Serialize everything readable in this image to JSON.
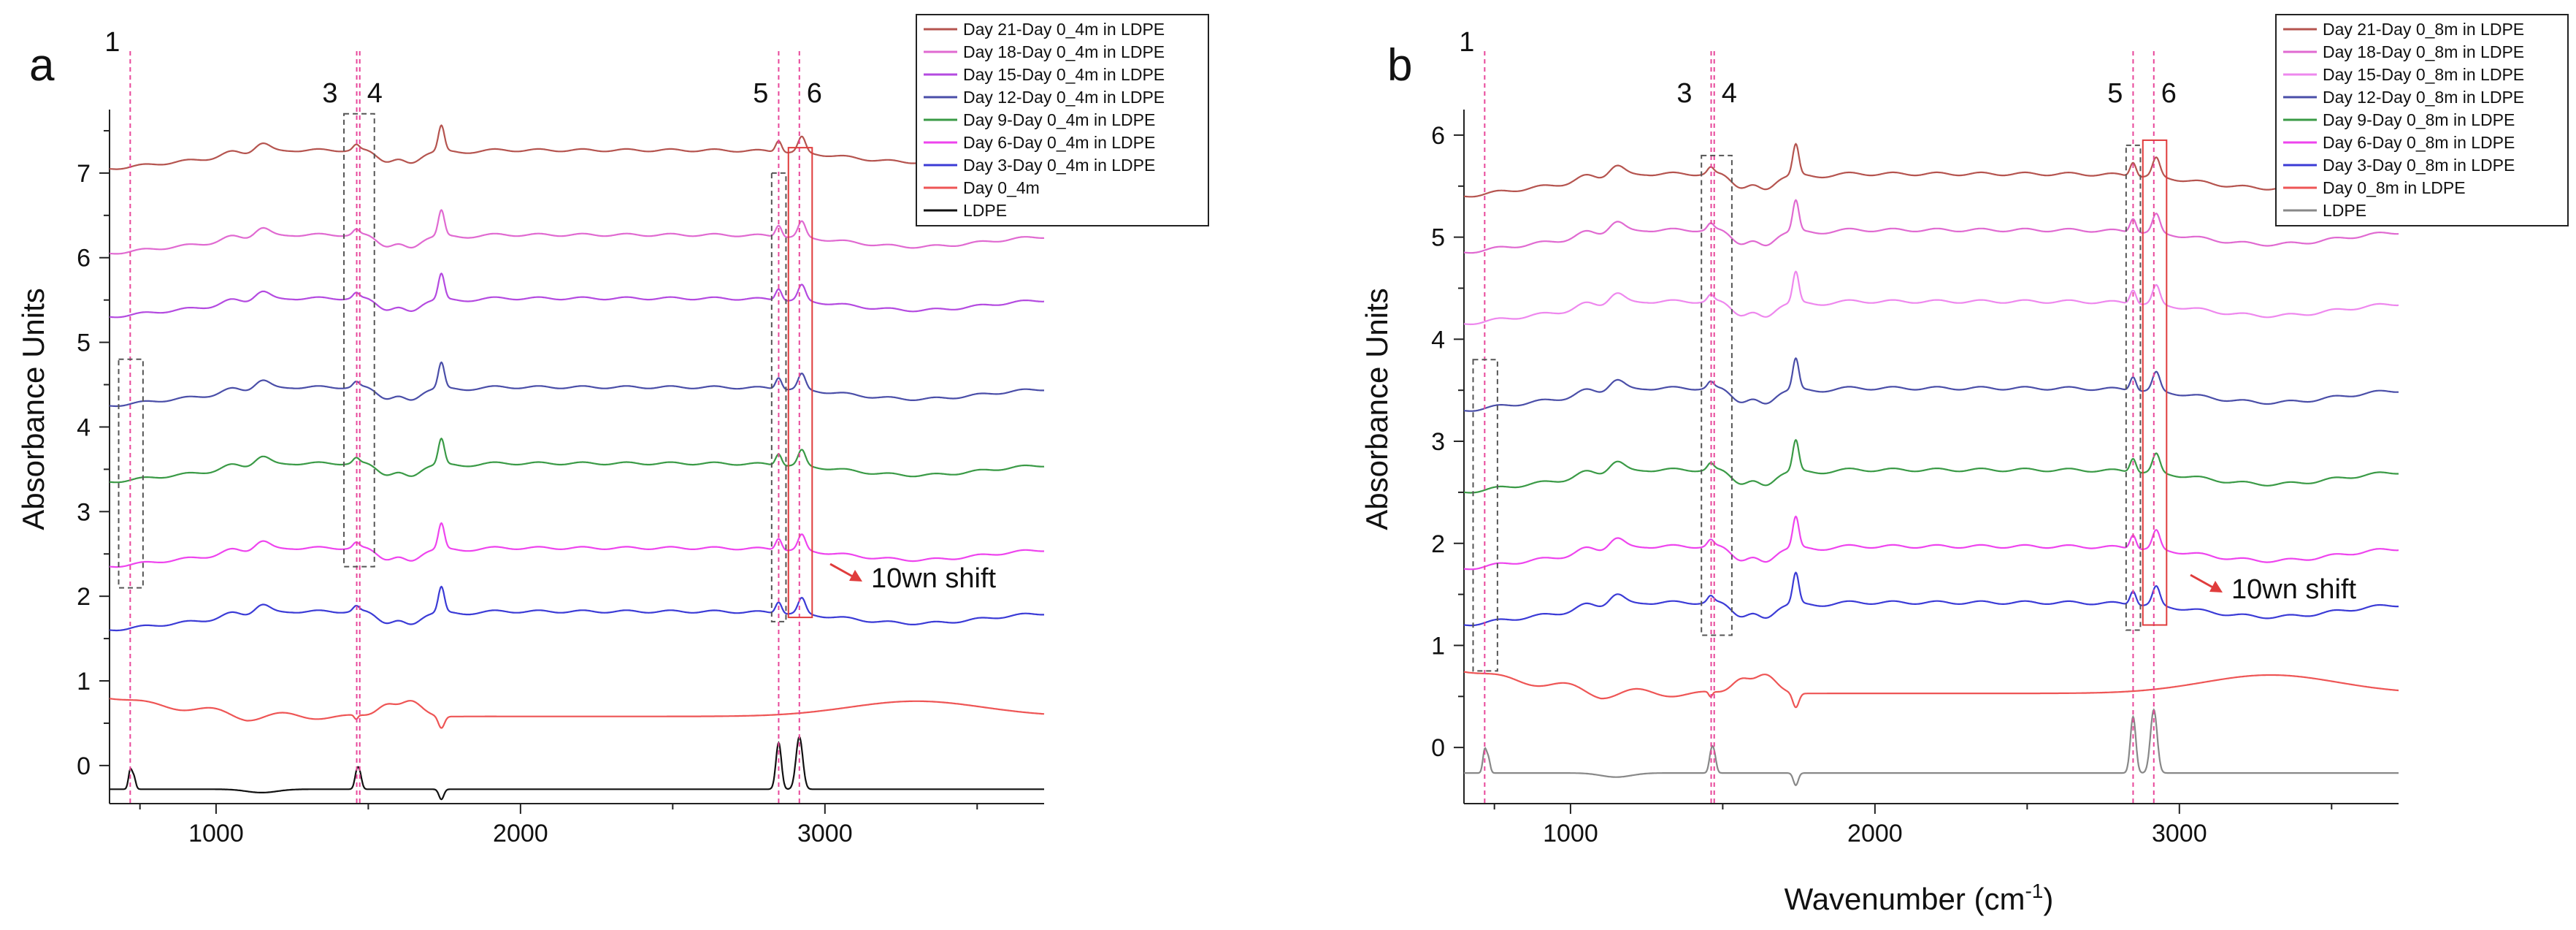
{
  "chart_data": [
    {
      "panel_label": "a",
      "type": "line",
      "title": "",
      "xlabel": "",
      "ylabel": "Absorbance Units",
      "xlim": [
        650,
        3720
      ],
      "ylim": [
        -0.45,
        7.75
      ],
      "xticks": [
        "1000",
        "2000",
        "3000"
      ],
      "yticks": [
        "0",
        "1",
        "2",
        "3",
        "4",
        "5",
        "6",
        "7"
      ],
      "series": [
        {
          "name": "Day 21-Day 0_4m in LDPE",
          "color": "#b5544f",
          "offset": 7.05,
          "profile": "diff"
        },
        {
          "name": "Day 18-Day 0_4m in LDPE",
          "color": "#e06ad1",
          "offset": 6.05,
          "profile": "diff"
        },
        {
          "name": "Day 15-Day 0_4m in LDPE",
          "color": "#b44ae0",
          "offset": 5.3,
          "profile": "diff"
        },
        {
          "name": "Day 12-Day 0_4m in LDPE",
          "color": "#4a4ea8",
          "offset": 4.25,
          "profile": "diff"
        },
        {
          "name": "Day 9-Day 0_4m in LDPE",
          "color": "#3a9a46",
          "offset": 3.35,
          "profile": "diff"
        },
        {
          "name": "Day 6-Day 0_4m in LDPE",
          "color": "#ee44ee",
          "offset": 2.35,
          "profile": "diff"
        },
        {
          "name": "Day 3-Day 0_4m in LDPE",
          "color": "#3b3bd6",
          "offset": 1.6,
          "profile": "diff"
        },
        {
          "name": "Day 0_4m",
          "color": "#ee5555",
          "offset": 0.8,
          "profile": "day0"
        },
        {
          "name": "LDPE",
          "color": "#111111",
          "offset": -0.28,
          "profile": "ldpe"
        }
      ],
      "reference_lines": [
        {
          "label": "1",
          "x": 718
        },
        {
          "label": "3",
          "x": 1462
        },
        {
          "label": "4",
          "x": 1472
        },
        {
          "label": "5",
          "x": 2848
        },
        {
          "label": "6",
          "x": 2916
        }
      ],
      "highlight_boxes": [
        {
          "style": "dashed-gray",
          "x": [
            680,
            760
          ],
          "y": [
            2.1,
            4.8
          ]
        },
        {
          "style": "dashed-gray",
          "x": [
            1420,
            1520
          ],
          "y": [
            2.35,
            7.7
          ]
        },
        {
          "style": "dashed-gray",
          "x": [
            2825,
            2872
          ],
          "y": [
            1.7,
            7.0
          ]
        },
        {
          "style": "solid-red",
          "x": [
            2880,
            2958
          ],
          "y": [
            1.75,
            7.3
          ]
        }
      ],
      "annotation": "10wn shift"
    },
    {
      "panel_label": "b",
      "type": "line",
      "title": "",
      "xlabel": "Wavenumber (cm-1)",
      "ylabel": "Absorbance Units",
      "xlim": [
        650,
        3720
      ],
      "ylim": [
        -0.55,
        6.25
      ],
      "xticks": [
        "1000",
        "2000",
        "3000"
      ],
      "yticks": [
        "0",
        "1",
        "2",
        "3",
        "4",
        "5",
        "6"
      ],
      "series": [
        {
          "name": "Day 21-Day 0_8m in LDPE",
          "color": "#b5544f",
          "offset": 5.4,
          "profile": "diff"
        },
        {
          "name": "Day 18-Day 0_8m in LDPE",
          "color": "#e06ad1",
          "offset": 4.85,
          "profile": "diff"
        },
        {
          "name": "Day 15-Day 0_8m in LDPE",
          "color": "#ee88ee",
          "offset": 4.15,
          "profile": "diff"
        },
        {
          "name": "Day 12-Day 0_8m in LDPE",
          "color": "#4a4ea8",
          "offset": 3.3,
          "profile": "diff"
        },
        {
          "name": "Day 9-Day 0_8m in LDPE",
          "color": "#3a9a46",
          "offset": 2.5,
          "profile": "diff"
        },
        {
          "name": "Day 6-Day 0_8m in LDPE",
          "color": "#ee44ee",
          "offset": 1.75,
          "profile": "diff"
        },
        {
          "name": "Day 3-Day 0_8m in LDPE",
          "color": "#3b3bd6",
          "offset": 1.2,
          "profile": "diff"
        },
        {
          "name": "Day 0_8m in LDPE",
          "color": "#ee5555",
          "offset": 0.75,
          "profile": "day0"
        },
        {
          "name": "LDPE",
          "color": "#888888",
          "offset": -0.25,
          "profile": "ldpe"
        }
      ],
      "reference_lines": [
        {
          "label": "1",
          "x": 718
        },
        {
          "label": "3",
          "x": 1462
        },
        {
          "label": "4",
          "x": 1472
        },
        {
          "label": "5",
          "x": 2848
        },
        {
          "label": "6",
          "x": 2916
        }
      ],
      "highlight_boxes": [
        {
          "style": "dashed-gray",
          "x": [
            680,
            760
          ],
          "y": [
            0.75,
            3.8
          ]
        },
        {
          "style": "dashed-gray",
          "x": [
            1430,
            1530
          ],
          "y": [
            1.1,
            5.8
          ]
        },
        {
          "style": "dashed-gray",
          "x": [
            2825,
            2872
          ],
          "y": [
            1.15,
            5.9
          ]
        },
        {
          "style": "solid-red",
          "x": [
            2880,
            2958
          ],
          "y": [
            1.2,
            5.95
          ]
        }
      ],
      "annotation": "10wn shift"
    }
  ]
}
